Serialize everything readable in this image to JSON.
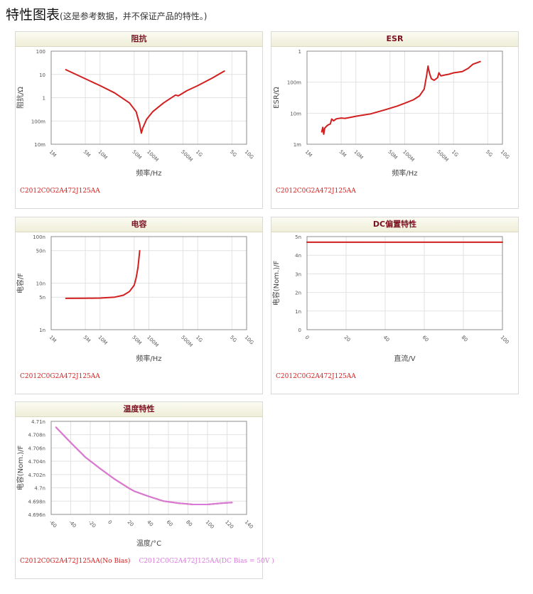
{
  "page": {
    "title": "特性图表",
    "subtitle": "(这是参考数据，并不保证产品的特性。)"
  },
  "panels": [
    {
      "id": "impedance",
      "title": "阻抗",
      "captions": [
        {
          "text": "C2012C0G2A472J125AA",
          "color": "#d21f1f"
        }
      ]
    },
    {
      "id": "esr",
      "title": "ESR",
      "captions": [
        {
          "text": "C2012C0G2A472J125AA",
          "color": "#d21f1f"
        }
      ]
    },
    {
      "id": "capacitance",
      "title": "电容",
      "captions": [
        {
          "text": "C2012C0G2A472J125AA",
          "color": "#d21f1f"
        }
      ]
    },
    {
      "id": "dcbias",
      "title": "DC偏置特性",
      "captions": [
        {
          "text": "C2012C0G2A472J125AA",
          "color": "#d21f1f"
        }
      ]
    },
    {
      "id": "temperature",
      "title": "温度特性",
      "captions": [
        {
          "text": "C2012C0G2A472J125AA(No Bias)",
          "color": "#d21f1f"
        },
        {
          "text": "C2012C0G2A472J125AA(DC Bias = 50V )",
          "color": "#d77ad8"
        }
      ]
    }
  ],
  "chart_data": [
    {
      "id": "impedance",
      "type": "line",
      "title": "阻抗",
      "xlabel": "频率/Hz",
      "ylabel": "阻抗/Ω",
      "xscale": "log",
      "yscale": "log",
      "xlim": [
        1000000,
        10000000000
      ],
      "ylim": [
        0.01,
        100
      ],
      "xticks": [
        {
          "v": 1000000,
          "label": "1M"
        },
        {
          "v": 5000000,
          "label": "5M"
        },
        {
          "v": 10000000,
          "label": "10M"
        },
        {
          "v": 50000000,
          "label": "50M"
        },
        {
          "v": 100000000,
          "label": "100M"
        },
        {
          "v": 500000000,
          "label": "500M"
        },
        {
          "v": 1000000000,
          "label": "1G"
        },
        {
          "v": 5000000000,
          "label": "5G"
        },
        {
          "v": 10000000000,
          "label": "10G"
        }
      ],
      "yticks": [
        {
          "v": 0.01,
          "label": "10m"
        },
        {
          "v": 0.1,
          "label": "100m"
        },
        {
          "v": 1,
          "label": "1"
        },
        {
          "v": 10,
          "label": "10"
        },
        {
          "v": 100,
          "label": "100"
        }
      ],
      "grid": true,
      "series": [
        {
          "color": "#d21f1f",
          "points": [
            [
              2000000,
              16
            ],
            [
              5000000,
              6.5
            ],
            [
              10000000,
              3.3
            ],
            [
              20000000,
              1.6
            ],
            [
              40000000,
              0.6
            ],
            [
              55000000,
              0.25
            ],
            [
              65000000,
              0.07
            ],
            [
              70000000,
              0.03
            ],
            [
              75000000,
              0.05
            ],
            [
              90000000,
              0.12
            ],
            [
              120000000,
              0.25
            ],
            [
              200000000,
              0.6
            ],
            [
              350000000,
              1.3
            ],
            [
              400000000,
              1.2
            ],
            [
              600000000,
              2.0
            ],
            [
              1000000000,
              3.3
            ],
            [
              2000000000,
              7.0
            ],
            [
              3500000000,
              14.0
            ]
          ]
        }
      ]
    },
    {
      "id": "esr",
      "type": "line",
      "title": "ESR",
      "xlabel": "频率/Hz",
      "ylabel": "ESR/Ω",
      "xscale": "log",
      "yscale": "log",
      "xlim": [
        1000000,
        10000000000
      ],
      "ylim": [
        0.001,
        1
      ],
      "xticks": [
        {
          "v": 1000000,
          "label": "1M"
        },
        {
          "v": 5000000,
          "label": "5M"
        },
        {
          "v": 10000000,
          "label": "10M"
        },
        {
          "v": 50000000,
          "label": "50M"
        },
        {
          "v": 100000000,
          "label": "100M"
        },
        {
          "v": 500000000,
          "label": "500M"
        },
        {
          "v": 1000000000,
          "label": "1G"
        },
        {
          "v": 5000000000,
          "label": "5G"
        },
        {
          "v": 10000000000,
          "label": "10G"
        }
      ],
      "yticks": [
        {
          "v": 0.001,
          "label": "1m"
        },
        {
          "v": 0.01,
          "label": "10m"
        },
        {
          "v": 0.1,
          "label": "100m"
        },
        {
          "v": 1,
          "label": "1"
        }
      ],
      "grid": true,
      "series": [
        {
          "color": "#d21f1f",
          "points": [
            [
              2000000,
              0.0025
            ],
            [
              2100000,
              0.0035
            ],
            [
              2200000,
              0.0021
            ],
            [
              2300000,
              0.0033
            ],
            [
              2500000,
              0.0038
            ],
            [
              2700000,
              0.0042
            ],
            [
              3000000,
              0.0045
            ],
            [
              3200000,
              0.0065
            ],
            [
              3500000,
              0.0057
            ],
            [
              4000000,
              0.0066
            ],
            [
              5000000,
              0.007
            ],
            [
              6000000,
              0.0068
            ],
            [
              8000000,
              0.0074
            ],
            [
              10000000,
              0.008
            ],
            [
              20000000,
              0.0095
            ],
            [
              40000000,
              0.013
            ],
            [
              70000000,
              0.017
            ],
            [
              100000000,
              0.021
            ],
            [
              150000000,
              0.027
            ],
            [
              200000000,
              0.036
            ],
            [
              250000000,
              0.06
            ],
            [
              280000000,
              0.16
            ],
            [
              300000000,
              0.33
            ],
            [
              320000000,
              0.2
            ],
            [
              350000000,
              0.13
            ],
            [
              400000000,
              0.115
            ],
            [
              470000000,
              0.14
            ],
            [
              500000000,
              0.2
            ],
            [
              550000000,
              0.16
            ],
            [
              650000000,
              0.17
            ],
            [
              800000000,
              0.18
            ],
            [
              1000000000,
              0.2
            ],
            [
              1500000000,
              0.22
            ],
            [
              2000000000,
              0.28
            ],
            [
              2500000000,
              0.38
            ],
            [
              3500000000,
              0.46
            ]
          ]
        }
      ]
    },
    {
      "id": "capacitance",
      "type": "line",
      "title": "电容",
      "xlabel": "频率/Hz",
      "ylabel": "电容/F",
      "xscale": "log",
      "yscale": "log",
      "xlim": [
        1000000,
        10000000000
      ],
      "ylim": [
        1e-09,
        1e-07
      ],
      "xticks": [
        {
          "v": 1000000,
          "label": "1M"
        },
        {
          "v": 5000000,
          "label": "5M"
        },
        {
          "v": 10000000,
          "label": "10M"
        },
        {
          "v": 50000000,
          "label": "50M"
        },
        {
          "v": 100000000,
          "label": "100M"
        },
        {
          "v": 500000000,
          "label": "500M"
        },
        {
          "v": 1000000000,
          "label": "1G"
        },
        {
          "v": 5000000000,
          "label": "5G"
        },
        {
          "v": 10000000000,
          "label": "10G"
        }
      ],
      "yticks": [
        {
          "v": 1e-09,
          "label": "1n"
        },
        {
          "v": 5e-09,
          "label": "5n"
        },
        {
          "v": 1e-08,
          "label": "10n"
        },
        {
          "v": 5e-08,
          "label": "50n"
        },
        {
          "v": 1e-07,
          "label": "100n"
        }
      ],
      "grid": true,
      "series": [
        {
          "color": "#d21f1f",
          "points": [
            [
              2000000,
              4.72e-09
            ],
            [
              5000000,
              4.73e-09
            ],
            [
              10000000,
              4.78e-09
            ],
            [
              20000000,
              5e-09
            ],
            [
              30000000,
              5.5e-09
            ],
            [
              40000000,
              6.6e-09
            ],
            [
              50000000,
              9e-09
            ],
            [
              55000000,
              1.3e-08
            ],
            [
              60000000,
              2.2e-08
            ],
            [
              65000000,
              5e-08
            ]
          ]
        }
      ]
    },
    {
      "id": "dcbias",
      "type": "line",
      "title": "DC偏置特性",
      "xlabel": "直流/V",
      "ylabel": "电容(Nom.)/F",
      "xscale": "linear",
      "yscale": "linear",
      "xlim": [
        0,
        100
      ],
      "ylim": [
        0,
        5e-09
      ],
      "xticks": [
        {
          "v": 0,
          "label": "0"
        },
        {
          "v": 20,
          "label": "20"
        },
        {
          "v": 40,
          "label": "40"
        },
        {
          "v": 60,
          "label": "60"
        },
        {
          "v": 80,
          "label": "80"
        },
        {
          "v": 100,
          "label": "100"
        }
      ],
      "yticks": [
        {
          "v": 0,
          "label": "0"
        },
        {
          "v": 1e-09,
          "label": "1n"
        },
        {
          "v": 2e-09,
          "label": "2n"
        },
        {
          "v": 3e-09,
          "label": "3n"
        },
        {
          "v": 4e-09,
          "label": "4n"
        },
        {
          "v": 5e-09,
          "label": "5n"
        }
      ],
      "grid": true,
      "series": [
        {
          "color": "#d21f1f",
          "points": [
            [
              0,
              4.7e-09
            ],
            [
              100,
              4.7e-09
            ]
          ]
        }
      ]
    },
    {
      "id": "temperature",
      "type": "line",
      "title": "温度特性",
      "xlabel": "温度/°C",
      "ylabel": "电容(Nom.)/F",
      "xscale": "linear",
      "yscale": "linear",
      "xlim": [
        -60,
        140
      ],
      "ylim": [
        4.696e-09,
        4.71e-09
      ],
      "xticks": [
        {
          "v": -60,
          "label": "-60"
        },
        {
          "v": -40,
          "label": "-40"
        },
        {
          "v": -20,
          "label": "-20"
        },
        {
          "v": 0,
          "label": "0"
        },
        {
          "v": 20,
          "label": "20"
        },
        {
          "v": 40,
          "label": "40"
        },
        {
          "v": 60,
          "label": "60"
        },
        {
          "v": 80,
          "label": "80"
        },
        {
          "v": 100,
          "label": "100"
        },
        {
          "v": 120,
          "label": "120"
        },
        {
          "v": 140,
          "label": "140"
        }
      ],
      "yticks": [
        {
          "v": 4.696e-09,
          "label": "4.696n"
        },
        {
          "v": 4.698e-09,
          "label": "4.698n"
        },
        {
          "v": 4.7e-09,
          "label": "4.7n"
        },
        {
          "v": 4.702e-09,
          "label": "4.702n"
        },
        {
          "v": 4.704e-09,
          "label": "4.704n"
        },
        {
          "v": 4.706e-09,
          "label": "4.706n"
        },
        {
          "v": 4.708e-09,
          "label": "4.708n"
        },
        {
          "v": 4.71e-09,
          "label": "4.71n"
        }
      ],
      "grid": true,
      "series": [
        {
          "name": "C2012C0G2A472J125AA(No Bias)",
          "color": "#d21f1f",
          "points": [
            [
              -55,
              4.7091e-09
            ],
            [
              -40,
              4.7068e-09
            ],
            [
              -25,
              4.7046e-09
            ],
            [
              -10,
              4.7029e-09
            ],
            [
              5,
              4.7013e-09
            ],
            [
              20,
              4.6999e-09
            ],
            [
              25,
              4.6995e-09
            ],
            [
              40,
              4.6987e-09
            ],
            [
              55,
              4.698e-09
            ],
            [
              70,
              4.6977e-09
            ],
            [
              85,
              4.6975e-09
            ],
            [
              100,
              4.6975e-09
            ],
            [
              115,
              4.6977e-09
            ],
            [
              125,
              4.6978e-09
            ]
          ]
        },
        {
          "name": "C2012C0G2A472J125AA(DC Bias = 50V )",
          "color": "#d77ad8",
          "points": [
            [
              -55,
              4.7091e-09
            ],
            [
              -40,
              4.7068e-09
            ],
            [
              -25,
              4.7046e-09
            ],
            [
              -10,
              4.7029e-09
            ],
            [
              5,
              4.7013e-09
            ],
            [
              20,
              4.6999e-09
            ],
            [
              25,
              4.6995e-09
            ],
            [
              40,
              4.6987e-09
            ],
            [
              55,
              4.698e-09
            ],
            [
              70,
              4.6977e-09
            ],
            [
              85,
              4.6975e-09
            ],
            [
              100,
              4.6975e-09
            ],
            [
              115,
              4.6977e-09
            ],
            [
              125,
              4.6978e-09
            ]
          ]
        }
      ]
    }
  ]
}
